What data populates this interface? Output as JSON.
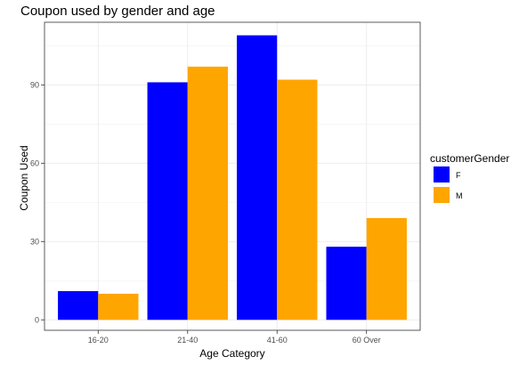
{
  "chart_data": {
    "type": "bar",
    "title": "Coupon used by gender and age",
    "xlabel": "Age Category",
    "ylabel": "Coupon Used",
    "categories": [
      "16-20",
      "21-40",
      "41-60",
      "60 Over"
    ],
    "series": [
      {
        "name": "F",
        "color": "#0000ff",
        "values": [
          11,
          91,
          109,
          28
        ]
      },
      {
        "name": "M",
        "color": "#ffa500",
        "values": [
          10,
          97,
          92,
          39
        ]
      }
    ],
    "yticks": [
      0,
      30,
      60,
      90
    ],
    "ylim": [
      -4,
      114
    ],
    "grid": true,
    "legend": {
      "title": "customerGender",
      "position": "right"
    }
  }
}
